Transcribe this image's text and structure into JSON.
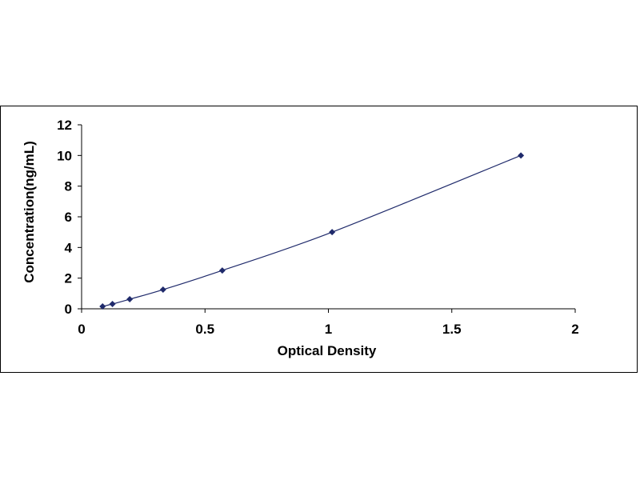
{
  "chart_data": {
    "type": "scatter",
    "title": "",
    "xlabel": "Optical Density",
    "ylabel": "Concentration(ng/mL)",
    "xlim": [
      0,
      2
    ],
    "ylim": [
      0,
      12
    ],
    "x_ticks": [
      "0",
      "0.5",
      "1",
      "1.5",
      "2"
    ],
    "y_ticks": [
      "0",
      "2",
      "4",
      "6",
      "8",
      "10",
      "12"
    ],
    "grid": false,
    "legend": "none",
    "trendline": "smooth",
    "series": [
      {
        "x": [
          0.085,
          0.125,
          0.195,
          0.33,
          0.57,
          1.015,
          1.78
        ],
        "y": [
          0.156,
          0.3125,
          0.625,
          1.25,
          2.5,
          5,
          10
        ]
      }
    ],
    "colors": {
      "marker": "#1f2a6b",
      "line": "#1f2a6b",
      "axis": "#000000"
    }
  }
}
